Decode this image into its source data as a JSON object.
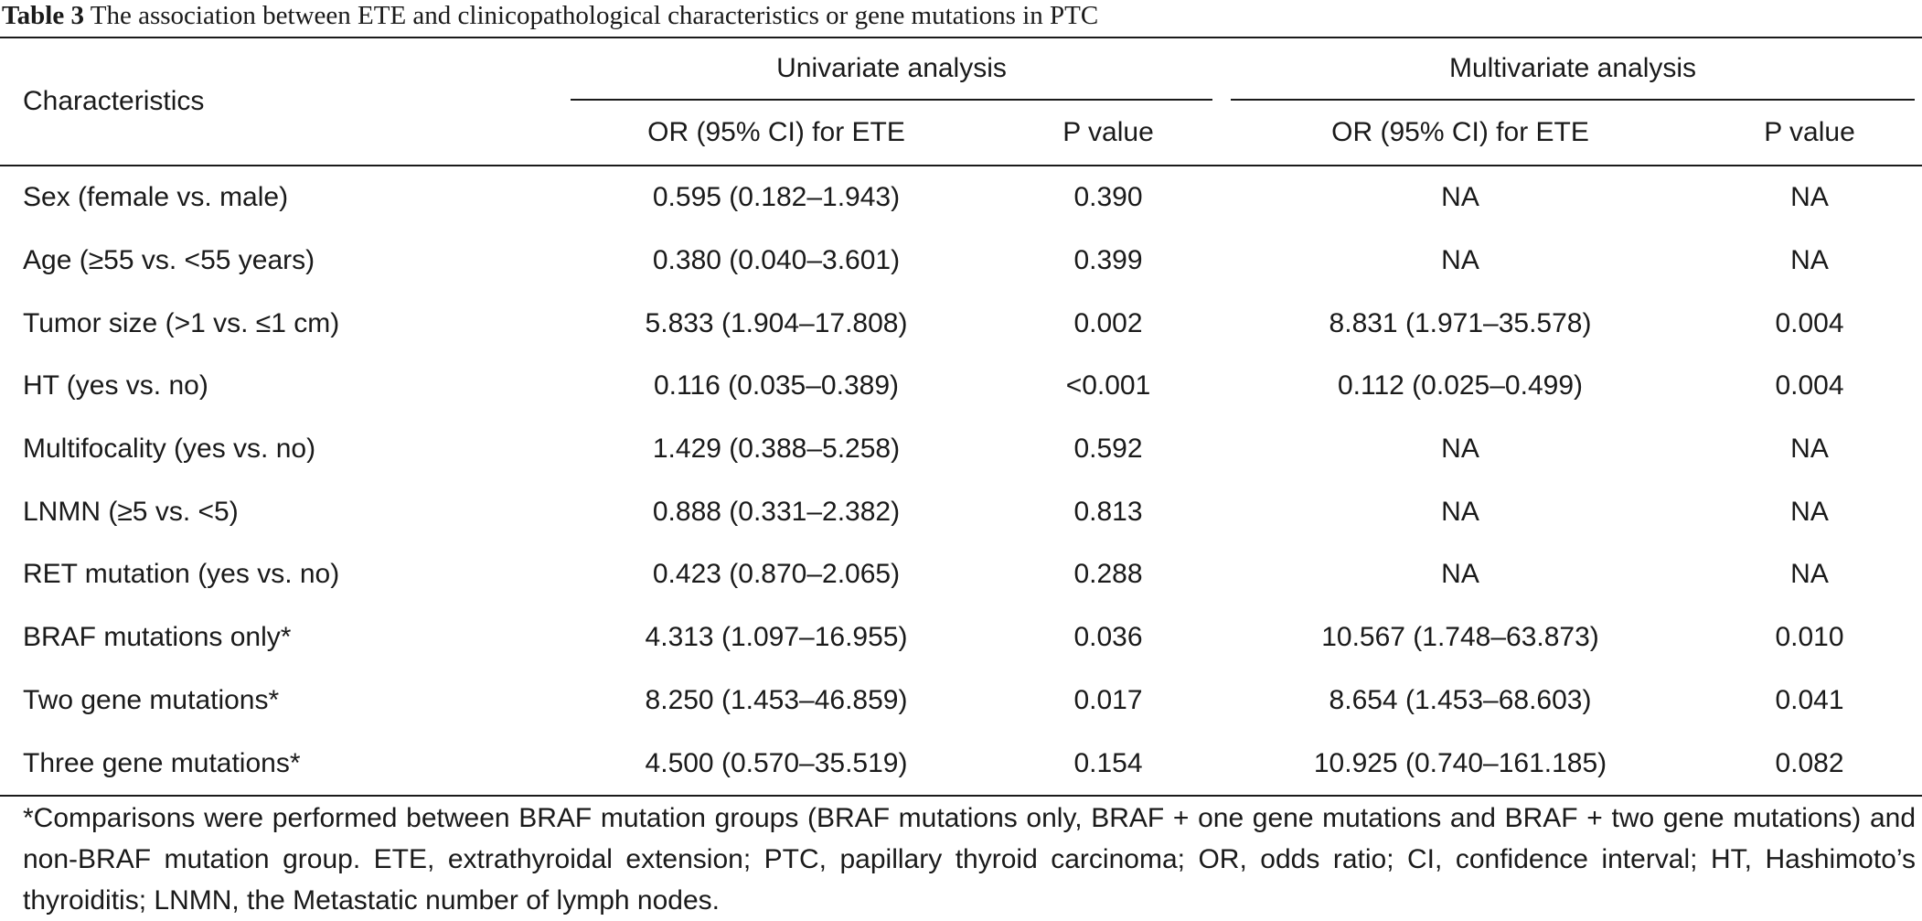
{
  "title": {
    "label": "Table 3",
    "text": "The association between ETE and clinicopathological characteristics or gene mutations in PTC"
  },
  "header": {
    "characteristics": "Characteristics",
    "univariate": "Univariate analysis",
    "multivariate": "Multivariate analysis",
    "or_uni": "OR (95% CI) for ETE",
    "p_uni": "P value",
    "or_multi": "OR (95% CI) for ETE",
    "p_multi": "P value"
  },
  "rows": [
    {
      "char": "Sex (female vs. male)",
      "or_uni": "0.595 (0.182–1.943)",
      "p_uni": "0.390",
      "or_multi": "NA",
      "p_multi": "NA"
    },
    {
      "char": "Age (≥55 vs. <55 years)",
      "or_uni": "0.380 (0.040–3.601)",
      "p_uni": "0.399",
      "or_multi": "NA",
      "p_multi": "NA"
    },
    {
      "char": "Tumor size (>1 vs. ≤1 cm)",
      "or_uni": "5.833 (1.904–17.808)",
      "p_uni": "0.002",
      "or_multi": "8.831 (1.971–35.578)",
      "p_multi": "0.004"
    },
    {
      "char": "HT (yes vs. no)",
      "or_uni": "0.116 (0.035–0.389)",
      "p_uni": "<0.001",
      "or_multi": "0.112 (0.025–0.499)",
      "p_multi": "0.004"
    },
    {
      "char": "Multifocality (yes vs. no)",
      "or_uni": "1.429 (0.388–5.258)",
      "p_uni": "0.592",
      "or_multi": "NA",
      "p_multi": "NA"
    },
    {
      "char": "LNMN (≥5 vs. <5)",
      "or_uni": "0.888 (0.331–2.382)",
      "p_uni": "0.813",
      "or_multi": "NA",
      "p_multi": "NA"
    },
    {
      "char": "RET mutation (yes vs. no)",
      "or_uni": "0.423 (0.870–2.065)",
      "p_uni": "0.288",
      "or_multi": "NA",
      "p_multi": "NA"
    },
    {
      "char": "BRAF mutations only*",
      "or_uni": "4.313 (1.097–16.955)",
      "p_uni": "0.036",
      "or_multi": "10.567 (1.748–63.873)",
      "p_multi": "0.010"
    },
    {
      "char": "Two gene mutations*",
      "or_uni": "8.250 (1.453–46.859)",
      "p_uni": "0.017",
      "or_multi": "8.654 (1.453–68.603)",
      "p_multi": "0.041"
    },
    {
      "char": "Three gene mutations*",
      "or_uni": "4.500 (0.570–35.519)",
      "p_uni": "0.154",
      "or_multi": "10.925 (0.740–161.185)",
      "p_multi": "0.082"
    }
  ],
  "footnote": "*Comparisons were performed between BRAF mutation groups (BRAF mutations only, BRAF + one gene mutations and BRAF + two gene mutations) and non-BRAF mutation group. ETE, extrathyroidal extension; PTC, papillary thyroid carcinoma; OR, odds ratio; CI, confidence interval; HT, Hashimoto’s thyroiditis; LNMN, the Metastatic number of lymph nodes."
}
